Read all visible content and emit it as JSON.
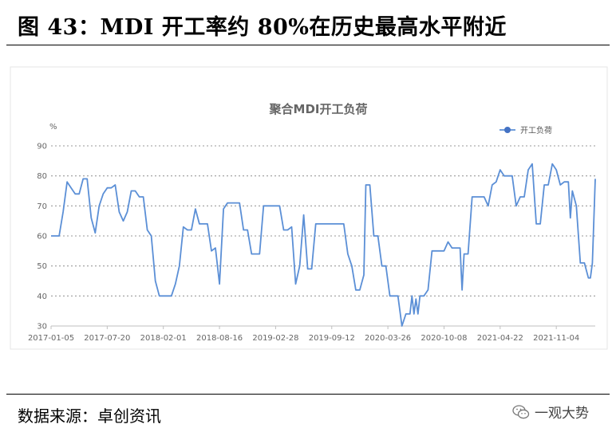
{
  "figure": {
    "title": "图 43：MDI 开工率约 80%在历史最高水平附近",
    "source": "数据来源：卓创资讯",
    "watermark": "一观大势"
  },
  "chart_data": {
    "type": "line",
    "title": "聚合MDI开工负荷",
    "ylabel": "%",
    "xlabel": "",
    "ylim": [
      30,
      90
    ],
    "yticks": [
      30,
      40,
      50,
      60,
      70,
      80,
      90
    ],
    "xlim": [
      "2017-01-05",
      "2022-03-20"
    ],
    "xticks": [
      "2017-01-05",
      "2017-07-20",
      "2018-02-01",
      "2018-08-16",
      "2019-02-28",
      "2019-09-12",
      "2020-03-26",
      "2020-10-08",
      "2021-04-22",
      "2021-11-04"
    ],
    "grid": "horizontal-dotted",
    "legend_position": "top-right",
    "colors": {
      "line": "#5b8fd6",
      "marker": "#4472c4",
      "grid": "#999999",
      "axis": "#bfbfbf"
    },
    "series": [
      {
        "name": "开工负荷",
        "points": [
          [
            "2017-01-05",
            60
          ],
          [
            "2017-02-02",
            60
          ],
          [
            "2017-02-16",
            68
          ],
          [
            "2017-03-02",
            78
          ],
          [
            "2017-03-16",
            76
          ],
          [
            "2017-03-30",
            74
          ],
          [
            "2017-04-13",
            74
          ],
          [
            "2017-04-27",
            79
          ],
          [
            "2017-05-11",
            79
          ],
          [
            "2017-05-25",
            66
          ],
          [
            "2017-06-08",
            61
          ],
          [
            "2017-06-22",
            70
          ],
          [
            "2017-07-06",
            74
          ],
          [
            "2017-07-20",
            76
          ],
          [
            "2017-08-03",
            76
          ],
          [
            "2017-08-17",
            77
          ],
          [
            "2017-08-31",
            68
          ],
          [
            "2017-09-14",
            65
          ],
          [
            "2017-09-28",
            68
          ],
          [
            "2017-10-12",
            75
          ],
          [
            "2017-10-26",
            75
          ],
          [
            "2017-11-09",
            73
          ],
          [
            "2017-11-23",
            73
          ],
          [
            "2017-12-07",
            62
          ],
          [
            "2017-12-21",
            60
          ],
          [
            "2018-01-04",
            45
          ],
          [
            "2018-01-18",
            40
          ],
          [
            "2018-02-01",
            40
          ],
          [
            "2018-02-15",
            40
          ],
          [
            "2018-03-01",
            40
          ],
          [
            "2018-03-15",
            44
          ],
          [
            "2018-03-29",
            50
          ],
          [
            "2018-04-12",
            63
          ],
          [
            "2018-04-26",
            62
          ],
          [
            "2018-05-10",
            62
          ],
          [
            "2018-05-24",
            69
          ],
          [
            "2018-06-07",
            64
          ],
          [
            "2018-06-21",
            64
          ],
          [
            "2018-07-05",
            64
          ],
          [
            "2018-07-19",
            55
          ],
          [
            "2018-08-02",
            56
          ],
          [
            "2018-08-16",
            44
          ],
          [
            "2018-08-30",
            69
          ],
          [
            "2018-09-13",
            71
          ],
          [
            "2018-09-27",
            71
          ],
          [
            "2018-10-11",
            71
          ],
          [
            "2018-10-25",
            71
          ],
          [
            "2018-11-08",
            62
          ],
          [
            "2018-11-22",
            62
          ],
          [
            "2018-12-06",
            54
          ],
          [
            "2018-12-20",
            54
          ],
          [
            "2019-01-03",
            54
          ],
          [
            "2019-01-17",
            70
          ],
          [
            "2019-01-31",
            70
          ],
          [
            "2019-02-14",
            70
          ],
          [
            "2019-02-28",
            70
          ],
          [
            "2019-03-14",
            70
          ],
          [
            "2019-03-28",
            62
          ],
          [
            "2019-04-11",
            62
          ],
          [
            "2019-04-25",
            63
          ],
          [
            "2019-05-09",
            44
          ],
          [
            "2019-05-23",
            50
          ],
          [
            "2019-06-06",
            67
          ],
          [
            "2019-06-20",
            49
          ],
          [
            "2019-07-04",
            49
          ],
          [
            "2019-07-18",
            64
          ],
          [
            "2019-08-01",
            64
          ],
          [
            "2019-08-15",
            64
          ],
          [
            "2019-08-29",
            64
          ],
          [
            "2019-09-12",
            64
          ],
          [
            "2019-09-26",
            64
          ],
          [
            "2019-10-10",
            64
          ],
          [
            "2019-10-24",
            64
          ],
          [
            "2019-11-07",
            54
          ],
          [
            "2019-11-21",
            50
          ],
          [
            "2019-12-05",
            42
          ],
          [
            "2019-12-19",
            42
          ],
          [
            "2020-01-02",
            47
          ],
          [
            "2020-01-09",
            77
          ],
          [
            "2020-01-23",
            77
          ],
          [
            "2020-02-06",
            60
          ],
          [
            "2020-02-20",
            60
          ],
          [
            "2020-03-05",
            50
          ],
          [
            "2020-03-19",
            50
          ],
          [
            "2020-04-02",
            40
          ],
          [
            "2020-04-16",
            40
          ],
          [
            "2020-04-30",
            40
          ],
          [
            "2020-05-14",
            30
          ],
          [
            "2020-05-28",
            34
          ],
          [
            "2020-06-11",
            34
          ],
          [
            "2020-06-18",
            40
          ],
          [
            "2020-06-25",
            34
          ],
          [
            "2020-07-02",
            39
          ],
          [
            "2020-07-09",
            34
          ],
          [
            "2020-07-16",
            40
          ],
          [
            "2020-07-30",
            40
          ],
          [
            "2020-08-13",
            42
          ],
          [
            "2020-08-27",
            55
          ],
          [
            "2020-09-10",
            55
          ],
          [
            "2020-09-24",
            55
          ],
          [
            "2020-10-08",
            55
          ],
          [
            "2020-10-22",
            58
          ],
          [
            "2020-11-05",
            56
          ],
          [
            "2020-11-19",
            56
          ],
          [
            "2020-12-03",
            56
          ],
          [
            "2020-12-10",
            42
          ],
          [
            "2020-12-17",
            54
          ],
          [
            "2020-12-31",
            54
          ],
          [
            "2021-01-14",
            73
          ],
          [
            "2021-01-28",
            73
          ],
          [
            "2021-02-11",
            73
          ],
          [
            "2021-02-25",
            73
          ],
          [
            "2021-03-11",
            70
          ],
          [
            "2021-03-25",
            77
          ],
          [
            "2021-04-08",
            78
          ],
          [
            "2021-04-22",
            82
          ],
          [
            "2021-05-06",
            80
          ],
          [
            "2021-05-20",
            80
          ],
          [
            "2021-06-03",
            80
          ],
          [
            "2021-06-17",
            70
          ],
          [
            "2021-07-01",
            73
          ],
          [
            "2021-07-15",
            73
          ],
          [
            "2021-07-29",
            82
          ],
          [
            "2021-08-12",
            84
          ],
          [
            "2021-08-26",
            64
          ],
          [
            "2021-09-09",
            64
          ],
          [
            "2021-09-23",
            77
          ],
          [
            "2021-10-07",
            77
          ],
          [
            "2021-10-21",
            84
          ],
          [
            "2021-11-04",
            82
          ],
          [
            "2021-11-18",
            77
          ],
          [
            "2021-12-02",
            78
          ],
          [
            "2021-12-16",
            78
          ],
          [
            "2021-12-23",
            66
          ],
          [
            "2021-12-30",
            75
          ],
          [
            "2022-01-13",
            70
          ],
          [
            "2022-01-27",
            51
          ],
          [
            "2022-02-10",
            51
          ],
          [
            "2022-02-24",
            46
          ],
          [
            "2022-03-03",
            46
          ],
          [
            "2022-03-10",
            51
          ],
          [
            "2022-03-20",
            79
          ]
        ]
      }
    ]
  }
}
